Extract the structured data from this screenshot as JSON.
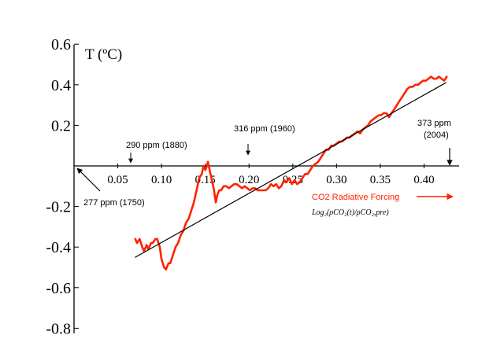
{
  "chart_data": {
    "type": "line",
    "ylabel": "T (ºC)",
    "xlabel": "CO2 Radiative Forcing",
    "xlabel_formula": "Log₂(ρCO₂(t)/ρCO₂,pre)",
    "xlim": [
      0,
      0.45
    ],
    "ylim": [
      -0.8,
      0.6
    ],
    "x_ticks": [
      {
        "v": 0.05,
        "label": "0.05"
      },
      {
        "v": 0.1,
        "label": "0.10"
      },
      {
        "v": 0.15,
        "label": "0.15"
      },
      {
        "v": 0.2,
        "label": "0.20"
      },
      {
        "v": 0.25,
        "label": "0.25"
      },
      {
        "v": 0.3,
        "label": "0.30"
      },
      {
        "v": 0.35,
        "label": "0.35"
      },
      {
        "v": 0.4,
        "label": "0.40"
      }
    ],
    "y_ticks": [
      {
        "v": 0.6,
        "label": "0.6"
      },
      {
        "v": 0.4,
        "label": "0.4"
      },
      {
        "v": 0.2,
        "label": "0.2"
      },
      {
        "v": -0.2,
        "label": "-0.2"
      },
      {
        "v": -0.4,
        "label": "-0.4"
      },
      {
        "v": -0.6,
        "label": "-0.6"
      },
      {
        "v": -0.8,
        "label": "-0.8"
      }
    ],
    "grid": false,
    "series": [
      {
        "color": "#ff2200",
        "x": [
          0.07,
          0.072,
          0.075,
          0.078,
          0.08,
          0.083,
          0.085,
          0.088,
          0.09,
          0.093,
          0.095,
          0.098,
          0.1,
          0.103,
          0.105,
          0.108,
          0.11,
          0.113,
          0.116,
          0.119,
          0.122,
          0.125,
          0.128,
          0.131,
          0.134,
          0.137,
          0.14,
          0.143,
          0.146,
          0.148,
          0.15,
          0.152,
          0.153,
          0.154,
          0.156,
          0.158,
          0.16,
          0.162,
          0.164,
          0.166,
          0.168,
          0.171,
          0.174,
          0.177,
          0.18,
          0.183,
          0.186,
          0.189,
          0.192,
          0.195,
          0.198,
          0.201,
          0.204,
          0.207,
          0.21,
          0.213,
          0.216,
          0.219,
          0.222,
          0.225,
          0.228,
          0.231,
          0.234,
          0.237,
          0.24,
          0.243,
          0.246,
          0.249,
          0.252,
          0.255,
          0.258,
          0.261,
          0.264,
          0.267,
          0.27,
          0.273,
          0.276,
          0.279,
          0.282,
          0.285,
          0.288,
          0.291,
          0.294,
          0.297,
          0.3,
          0.303,
          0.306,
          0.309,
          0.312,
          0.315,
          0.318,
          0.321,
          0.324,
          0.327,
          0.33,
          0.333,
          0.336,
          0.339,
          0.342,
          0.345,
          0.348,
          0.351,
          0.354,
          0.357,
          0.36,
          0.363,
          0.366,
          0.369,
          0.372,
          0.375,
          0.378,
          0.381,
          0.384,
          0.387,
          0.39,
          0.393,
          0.396,
          0.399,
          0.402,
          0.405,
          0.408,
          0.411,
          0.414,
          0.417,
          0.42,
          0.423,
          0.426
        ],
        "y": [
          -0.36,
          -0.38,
          -0.36,
          -0.4,
          -0.42,
          -0.39,
          -0.41,
          -0.38,
          -0.38,
          -0.36,
          -0.36,
          -0.4,
          -0.46,
          -0.5,
          -0.51,
          -0.48,
          -0.48,
          -0.44,
          -0.4,
          -0.38,
          -0.34,
          -0.32,
          -0.28,
          -0.26,
          -0.22,
          -0.18,
          -0.12,
          -0.06,
          -0.04,
          0.0,
          -0.02,
          0.0,
          0.02,
          0.0,
          -0.04,
          -0.08,
          -0.12,
          -0.18,
          -0.14,
          -0.12,
          -0.12,
          -0.1,
          -0.1,
          -0.11,
          -0.1,
          -0.09,
          -0.09,
          -0.1,
          -0.11,
          -0.1,
          -0.11,
          -0.12,
          -0.11,
          -0.11,
          -0.12,
          -0.12,
          -0.12,
          -0.12,
          -0.11,
          -0.09,
          -0.1,
          -0.09,
          -0.11,
          -0.1,
          -0.07,
          -0.08,
          -0.06,
          -0.09,
          -0.07,
          -0.09,
          -0.08,
          -0.06,
          -0.04,
          -0.04,
          -0.02,
          0.0,
          0.01,
          0.02,
          0.04,
          0.06,
          0.08,
          0.08,
          0.1,
          0.1,
          0.11,
          0.12,
          0.12,
          0.13,
          0.14,
          0.14,
          0.15,
          0.16,
          0.17,
          0.16,
          0.18,
          0.19,
          0.2,
          0.22,
          0.23,
          0.24,
          0.25,
          0.25,
          0.26,
          0.26,
          0.24,
          0.26,
          0.28,
          0.3,
          0.32,
          0.34,
          0.36,
          0.38,
          0.39,
          0.39,
          0.4,
          0.4,
          0.41,
          0.42,
          0.42,
          0.43,
          0.44,
          0.43,
          0.43,
          0.44,
          0.43,
          0.42,
          0.44
        ]
      },
      {
        "color": "#000000",
        "x": [
          0.07,
          0.425
        ],
        "y": [
          -0.45,
          0.41
        ]
      }
    ],
    "annotations": [
      {
        "label": "290 ppm (1880)",
        "x": 0.06,
        "arrow": "down"
      },
      {
        "label": "316 ppm (1960)",
        "x": 0.193,
        "arrow": "down"
      },
      {
        "label": "373 ppm",
        "label2": "(2004)",
        "x": 0.425,
        "arrow": "down"
      },
      {
        "label": "277 ppm (1750)",
        "x": 0.0,
        "arrow": "up-left"
      }
    ]
  }
}
